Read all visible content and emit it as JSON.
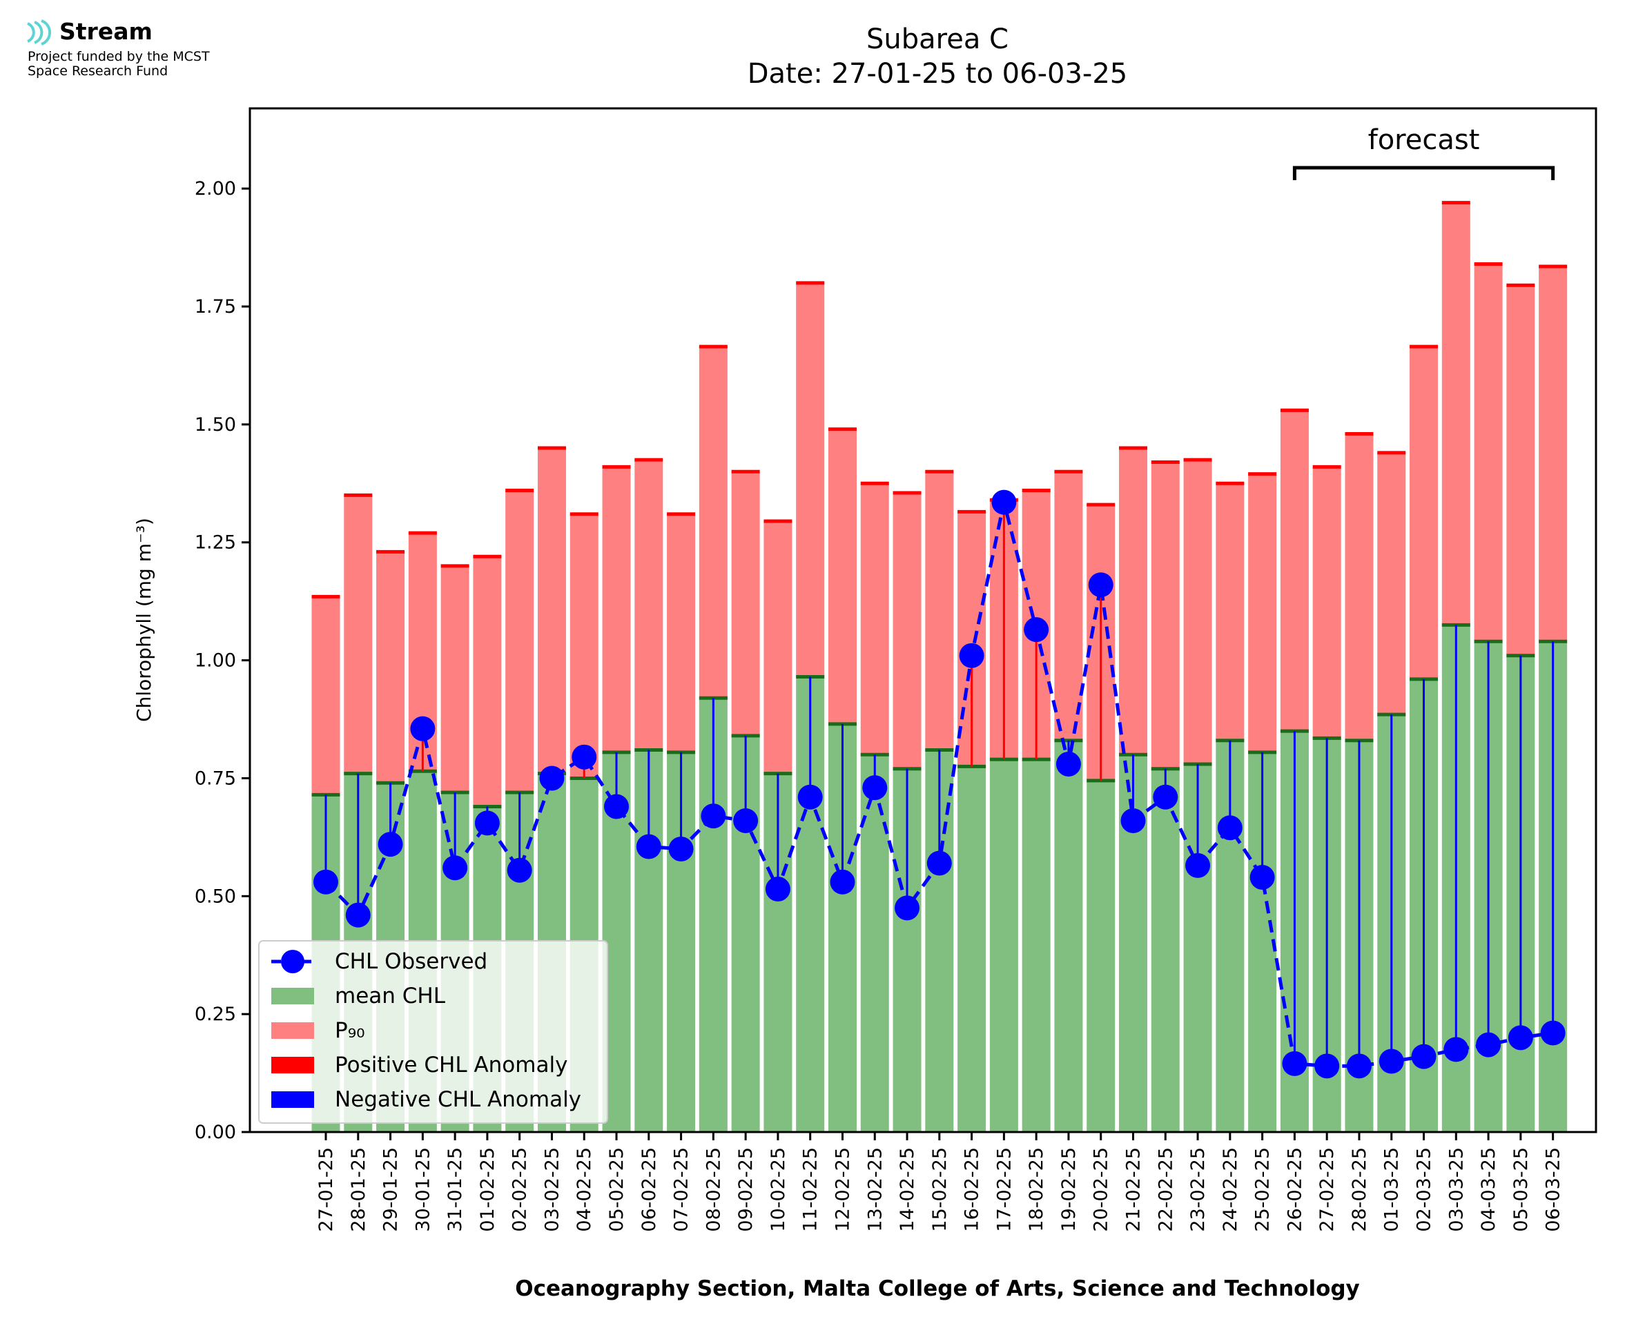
{
  "logo": {
    "brand": "Stream",
    "line1": "Project funded by the MCST",
    "line2": "Space Research Fund",
    "icon": "wave-icon",
    "color": "#5fd3d3"
  },
  "colors": {
    "mean": "#80bf80",
    "mean_edge": "#1a6b1a",
    "p90": "#ff8080",
    "p90_edge": "#ff0000",
    "pos_anomaly": "#ff0000",
    "neg_anomaly": "#0000ff",
    "observed": "#0000ff"
  },
  "chart_data": {
    "type": "bar",
    "title": "Subarea C",
    "subtitle": "Date: 27-01-25 to 06-03-25",
    "xlabel": "Oceanography Section, Malta College of Arts, Science and Technology",
    "ylabel": "Chlorophyll (mg m⁻³)",
    "ylim": [
      0,
      2.17
    ],
    "yticks": [
      "0.00",
      "0.25",
      "0.50",
      "0.75",
      "1.00",
      "1.25",
      "1.50",
      "1.75",
      "2.00"
    ],
    "ytick_values": [
      0,
      0.25,
      0.5,
      0.75,
      1.0,
      1.25,
      1.5,
      1.75,
      2.0
    ],
    "categories": [
      "27-01-25",
      "28-01-25",
      "29-01-25",
      "30-01-25",
      "31-01-25",
      "01-02-25",
      "02-02-25",
      "03-02-25",
      "04-02-25",
      "05-02-25",
      "06-02-25",
      "07-02-25",
      "08-02-25",
      "09-02-25",
      "10-02-25",
      "11-02-25",
      "12-02-25",
      "13-02-25",
      "14-02-25",
      "15-02-25",
      "16-02-25",
      "17-02-25",
      "18-02-25",
      "19-02-25",
      "20-02-25",
      "21-02-25",
      "22-02-25",
      "23-02-25",
      "24-02-25",
      "25-02-25",
      "26-02-25",
      "27-02-25",
      "28-02-25",
      "01-03-25",
      "02-03-25",
      "03-03-25",
      "04-03-25",
      "05-03-25",
      "06-03-25"
    ],
    "series": [
      {
        "name": "mean CHL",
        "values": [
          0.715,
          0.76,
          0.74,
          0.765,
          0.72,
          0.69,
          0.72,
          0.76,
          0.75,
          0.805,
          0.81,
          0.805,
          0.92,
          0.84,
          0.76,
          0.965,
          0.865,
          0.8,
          0.77,
          0.81,
          0.775,
          0.79,
          0.79,
          0.83,
          0.745,
          0.8,
          0.77,
          0.78,
          0.83,
          0.805,
          0.85,
          0.835,
          0.83,
          0.885,
          0.96,
          1.075,
          1.04,
          1.01,
          1.04
        ]
      },
      {
        "name": "P₉₀",
        "values": [
          1.135,
          1.35,
          1.23,
          1.27,
          1.2,
          1.22,
          1.36,
          1.45,
          1.31,
          1.41,
          1.425,
          1.31,
          1.665,
          1.4,
          1.295,
          1.8,
          1.49,
          1.375,
          1.355,
          1.4,
          1.315,
          1.34,
          1.36,
          1.4,
          1.33,
          1.45,
          1.42,
          1.425,
          1.375,
          1.395,
          1.53,
          1.41,
          1.48,
          1.44,
          1.665,
          1.97,
          1.84,
          1.795,
          1.835
        ]
      },
      {
        "name": "CHL Observed",
        "values": [
          0.53,
          0.46,
          0.61,
          0.855,
          0.56,
          0.655,
          0.555,
          0.75,
          0.795,
          0.69,
          0.605,
          0.6,
          0.67,
          0.66,
          0.515,
          0.71,
          0.53,
          0.73,
          0.475,
          0.57,
          1.01,
          1.335,
          1.065,
          0.78,
          1.16,
          0.66,
          0.71,
          0.565,
          0.645,
          0.54,
          0.145,
          0.14,
          0.14,
          0.15,
          0.16,
          0.175,
          0.185,
          0.2,
          0.21
        ]
      }
    ],
    "legend": [
      "CHL Observed",
      "mean CHL",
      "P₉₀",
      "Positive CHL Anomaly",
      "Negative CHL Anomaly"
    ],
    "legend_position": "lower-left",
    "annotation": "forecast",
    "forecast_range": [
      "26-02-25",
      "06-03-25"
    ]
  }
}
